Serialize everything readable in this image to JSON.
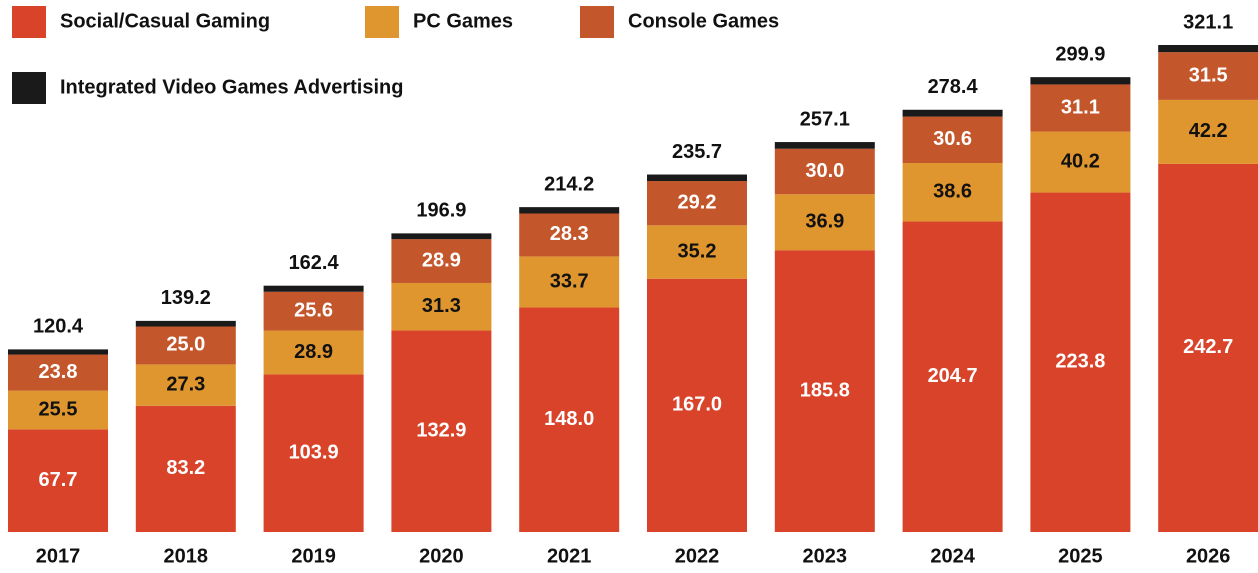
{
  "chart_data": {
    "type": "stacked-bar",
    "categories": [
      "2017",
      "2018",
      "2019",
      "2020",
      "2021",
      "2022",
      "2023",
      "2024",
      "2025",
      "2026"
    ],
    "series": [
      {
        "name": "Social/Casual Gaming",
        "color": "#d9432a",
        "values": [
          67.7,
          83.2,
          103.9,
          132.9,
          148.0,
          167.0,
          185.8,
          204.7,
          223.8,
          242.7
        ],
        "value_labels": [
          "67.7",
          "83.2",
          "103.9",
          "132.9",
          "148.0",
          "167.0",
          "185.8",
          "204.7",
          "223.8",
          "242.7"
        ]
      },
      {
        "name": "PC Games",
        "color": "#e0962e",
        "values": [
          25.5,
          27.3,
          28.9,
          31.3,
          33.7,
          35.2,
          36.9,
          38.6,
          40.2,
          42.2
        ],
        "value_labels": [
          "25.5",
          "27.3",
          "28.9",
          "31.3",
          "33.7",
          "35.2",
          "36.9",
          "38.6",
          "40.2",
          "42.2"
        ]
      },
      {
        "name": "Console Games",
        "color": "#c4562b",
        "values": [
          23.8,
          25.0,
          25.6,
          28.9,
          28.3,
          29.2,
          30.0,
          30.6,
          31.1,
          31.5
        ],
        "value_labels": [
          "23.8",
          "25.0",
          "25.6",
          "28.9",
          "28.3",
          "29.2",
          "30.0",
          "30.6",
          "31.1",
          "31.5"
        ]
      },
      {
        "name": "Integrated Video Games Advertising",
        "color": "#1a1a1a",
        "values": [
          3.4,
          3.7,
          4.0,
          3.8,
          4.2,
          4.3,
          4.4,
          4.5,
          4.8,
          4.7
        ]
      }
    ],
    "totals": [
      120.4,
      139.2,
      162.4,
      196.9,
      214.2,
      235.7,
      257.1,
      278.4,
      299.9,
      321.1
    ],
    "total_labels": [
      "120.4",
      "139.2",
      "162.4",
      "196.9",
      "214.2",
      "235.7",
      "257.1",
      "278.4",
      "299.9",
      "321.1"
    ]
  }
}
